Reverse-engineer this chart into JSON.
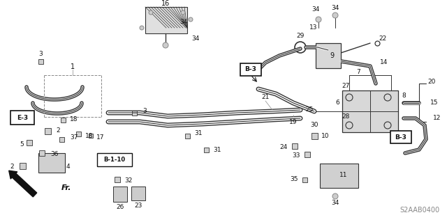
{
  "bg_color": "#ffffff",
  "diagram_code": "S2AAB0400",
  "fig_w": 6.4,
  "fig_h": 3.19,
  "dpi": 100
}
